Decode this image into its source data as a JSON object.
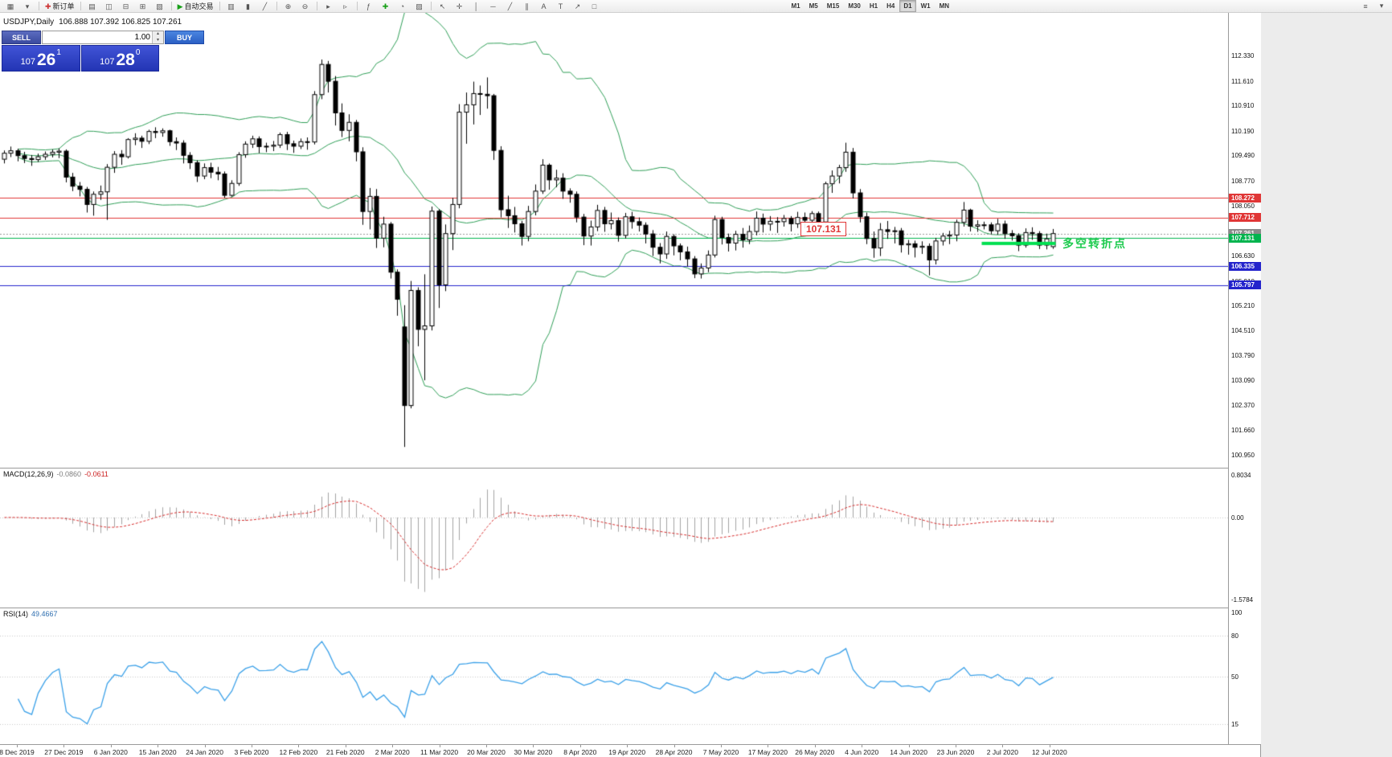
{
  "toolbar": {
    "groups": [
      [
        {
          "name": "new-chart-icon",
          "glyph": "▦"
        },
        {
          "name": "chart-profiles-icon",
          "glyph": "▾"
        }
      ],
      [
        {
          "name": "new-order-button",
          "glyph": "✚",
          "glyph_color": "#cc3333",
          "label": "新订单"
        }
      ],
      [
        {
          "name": "market-watch-icon",
          "glyph": "▤"
        },
        {
          "name": "data-window-icon",
          "glyph": "◫"
        },
        {
          "name": "navigator-icon",
          "glyph": "⊟"
        },
        {
          "name": "terminal-icon",
          "glyph": "⊞"
        },
        {
          "name": "strategy-tester-icon",
          "glyph": "▧"
        }
      ],
      [
        {
          "name": "autotrading-button",
          "glyph": "▶",
          "glyph_color": "#18a018",
          "label": "自动交易"
        }
      ],
      [
        {
          "name": "bar-chart-icon",
          "glyph": "▥"
        },
        {
          "name": "candlestick-chart-icon",
          "glyph": "▮"
        },
        {
          "name": "line-chart-icon",
          "glyph": "╱"
        }
      ],
      [
        {
          "name": "zoom-in-icon",
          "glyph": "⊕"
        },
        {
          "name": "zoom-out-icon",
          "glyph": "⊖"
        }
      ],
      [
        {
          "name": "auto-scroll-icon",
          "glyph": "▸"
        },
        {
          "name": "chart-shift-icon",
          "glyph": "▹"
        }
      ],
      [
        {
          "name": "indicators-list-icon",
          "glyph": "ƒ"
        },
        {
          "name": "add-indicator-icon",
          "glyph": "✚",
          "glyph_color": "#18a018"
        },
        {
          "name": "periods-menu-icon",
          "glyph": "◔"
        },
        {
          "name": "templates-icon",
          "glyph": "▨"
        }
      ],
      [
        {
          "name": "cursor-icon",
          "glyph": "↖"
        },
        {
          "name": "crosshair-icon",
          "glyph": "✛"
        },
        {
          "name": "vertical-line-icon",
          "glyph": "│"
        },
        {
          "name": "horizontal-line-icon",
          "glyph": "─"
        },
        {
          "name": "trendline-icon",
          "glyph": "╱"
        },
        {
          "name": "channel-icon",
          "glyph": "∥"
        },
        {
          "name": "text-icon",
          "glyph": "A"
        },
        {
          "name": "text-label-icon",
          "glyph": "T"
        },
        {
          "name": "arrow-tools-icon",
          "glyph": "↗"
        },
        {
          "name": "shapes-icon",
          "glyph": "□"
        }
      ]
    ],
    "timeframes": {
      "items": [
        "M1",
        "M5",
        "M15",
        "M30",
        "H1",
        "H4",
        "D1",
        "W1",
        "MN"
      ],
      "active": "D1"
    },
    "right_items": [
      {
        "name": "toolbar-menu-icon",
        "glyph": "≡"
      },
      {
        "name": "toolbar-collapse-icon",
        "glyph": "▾"
      }
    ]
  },
  "trade_panel": {
    "sell_label": "SELL",
    "buy_label": "BUY",
    "volume": "1.00",
    "bid": {
      "prefix": "107",
      "digits": "26",
      "pip": "1"
    },
    "ask": {
      "prefix": "107",
      "digits": "28",
      "pip": "0"
    }
  },
  "chart": {
    "title": "USDJPY,Daily",
    "ohlc_text": "106.888 107.392 106.825 107.261",
    "annotation_price": "107.131",
    "turning_point_label": "多空转折点",
    "price_axis_labels": [
      "112.330",
      "111.610",
      "110.910",
      "110.190",
      "109.490",
      "108.770",
      "108.050",
      "107.330",
      "106.630",
      "105.910",
      "105.210",
      "104.510",
      "103.790",
      "103.090",
      "102.370",
      "101.660",
      "100.950"
    ],
    "level_tags": [
      {
        "text": "108.272",
        "bg": "#e03636"
      },
      {
        "text": "107.712",
        "bg": "#e03636"
      },
      {
        "text": "107.261",
        "bg": "#8a8a8a"
      },
      {
        "text": "107.131",
        "bg": "#00b44e"
      },
      {
        "text": "106.335",
        "bg": "#2424cc"
      },
      {
        "text": "105.797",
        "bg": "#2424cc"
      }
    ],
    "date_axis_labels": [
      "8 Dec 2019",
      "27 Dec 2019",
      "6 Jan 2020",
      "15 Jan 2020",
      "24 Jan 2020",
      "3 Feb 2020",
      "12 Feb 2020",
      "21 Feb 2020",
      "2 Mar 2020",
      "11 Mar 2020",
      "20 Mar 2020",
      "30 Mar 2020",
      "8 Apr 2020",
      "19 Apr 2020",
      "28 Apr 2020",
      "7 May 2020",
      "17 May 2020",
      "26 May 2020",
      "4 Jun 2020",
      "14 Jun 2020",
      "23 Jun 2020",
      "2 Jul 2020",
      "12 Jul 2020"
    ]
  },
  "macd": {
    "name": "MACD(12,26,9)",
    "value_main": "-0.0860",
    "value_signal": "-0.0611",
    "axis_labels": [
      "0.8034",
      "0.00",
      "-1.5784"
    ],
    "scale_max": 0.8034,
    "scale_min": -1.5784
  },
  "rsi": {
    "name": "RSI(14)",
    "value": "49.4667",
    "axis_labels": [
      "100",
      "80",
      "50",
      "15"
    ],
    "scale_max": 100,
    "scale_min": 0
  },
  "chart_data": {
    "type": "candlestick",
    "symbol": "USDJPY",
    "timeframe": "Daily",
    "ylim": [
      100.59,
      113.55
    ],
    "bollinger": {
      "period": 20,
      "deviation": 2,
      "color": "#2f9e57"
    },
    "indicators": {
      "macd": {
        "fast": 12,
        "slow": 26,
        "signal": 9
      },
      "rsi": {
        "period": 14
      }
    },
    "levels": [
      {
        "price": 108.272,
        "color": "#e03636",
        "style": "solid"
      },
      {
        "price": 107.712,
        "color": "#e03636",
        "style": "solid"
      },
      {
        "price": 107.131,
        "color": "#00b44e",
        "style": "solid"
      },
      {
        "price": 106.335,
        "color": "#2424cc",
        "style": "solid"
      },
      {
        "price": 105.797,
        "color": "#2424cc",
        "style": "solid"
      },
      {
        "price": 107.261,
        "color": "#999999",
        "style": "dotted"
      }
    ],
    "highlight_segment": {
      "price": 106.98,
      "x_from_bar": 142,
      "x_to_bar": 152,
      "color": "#00e050"
    },
    "ohlc": [
      [
        109.38,
        109.63,
        109.26,
        109.55
      ],
      [
        109.55,
        109.74,
        109.44,
        109.62
      ],
      [
        109.62,
        109.68,
        109.32,
        109.48
      ],
      [
        109.48,
        109.59,
        109.27,
        109.4
      ],
      [
        109.4,
        109.5,
        109.19,
        109.37
      ],
      [
        109.37,
        109.54,
        109.3,
        109.45
      ],
      [
        109.45,
        109.6,
        109.36,
        109.52
      ],
      [
        109.52,
        109.66,
        109.43,
        109.58
      ],
      [
        109.58,
        109.69,
        109.41,
        109.61
      ],
      [
        109.61,
        109.66,
        108.72,
        108.87
      ],
      [
        108.87,
        108.99,
        108.47,
        108.61
      ],
      [
        108.61,
        108.73,
        108.32,
        108.52
      ],
      [
        108.52,
        108.59,
        107.86,
        108.09
      ],
      [
        108.09,
        108.46,
        107.77,
        108.38
      ],
      [
        108.38,
        108.63,
        108.22,
        108.45
      ],
      [
        108.45,
        109.24,
        107.65,
        109.15
      ],
      [
        109.15,
        109.61,
        108.99,
        109.52
      ],
      [
        109.52,
        109.64,
        109.22,
        109.45
      ],
      [
        109.45,
        109.98,
        109.4,
        109.94
      ],
      [
        109.94,
        110.12,
        109.78,
        109.98
      ],
      [
        109.98,
        110.05,
        109.7,
        109.89
      ],
      [
        109.89,
        110.22,
        109.81,
        110.17
      ],
      [
        110.17,
        110.29,
        109.98,
        110.14
      ],
      [
        110.14,
        110.26,
        110.02,
        110.19
      ],
      [
        110.19,
        110.22,
        109.76,
        109.88
      ],
      [
        109.88,
        110.0,
        109.64,
        109.84
      ],
      [
        109.84,
        109.92,
        109.26,
        109.49
      ],
      [
        109.49,
        109.58,
        109.1,
        109.28
      ],
      [
        109.28,
        109.35,
        108.73,
        108.9
      ],
      [
        108.9,
        109.26,
        108.81,
        109.14
      ],
      [
        109.14,
        109.28,
        108.84,
        109.01
      ],
      [
        109.01,
        109.16,
        108.78,
        108.96
      ],
      [
        108.96,
        109.03,
        108.28,
        108.35
      ],
      [
        108.35,
        108.78,
        108.31,
        108.69
      ],
      [
        108.69,
        109.58,
        108.62,
        109.51
      ],
      [
        109.51,
        109.89,
        109.42,
        109.81
      ],
      [
        109.81,
        110.05,
        109.7,
        109.96
      ],
      [
        109.96,
        110.03,
        109.55,
        109.74
      ],
      [
        109.74,
        109.85,
        109.58,
        109.75
      ],
      [
        109.75,
        109.9,
        109.61,
        109.78
      ],
      [
        109.78,
        110.14,
        109.7,
        110.08
      ],
      [
        110.08,
        110.16,
        109.64,
        109.82
      ],
      [
        109.82,
        109.91,
        109.56,
        109.75
      ],
      [
        109.75,
        109.97,
        109.67,
        109.88
      ],
      [
        109.88,
        110.0,
        109.65,
        109.87
      ],
      [
        109.87,
        111.32,
        109.8,
        111.22
      ],
      [
        111.22,
        112.22,
        111.09,
        112.08
      ],
      [
        112.08,
        112.18,
        111.28,
        111.6
      ],
      [
        111.6,
        111.75,
        110.34,
        110.7
      ],
      [
        110.7,
        110.97,
        110.01,
        110.2
      ],
      [
        110.2,
        110.66,
        109.89,
        110.43
      ],
      [
        110.43,
        110.5,
        109.32,
        109.59
      ],
      [
        109.59,
        109.72,
        107.51,
        107.89
      ],
      [
        107.89,
        108.56,
        107.38,
        108.32
      ],
      [
        108.32,
        108.53,
        106.85,
        107.13
      ],
      [
        107.13,
        107.74,
        106.87,
        107.53
      ],
      [
        107.53,
        107.59,
        105.98,
        106.16
      ],
      [
        106.16,
        106.24,
        104.92,
        105.39
      ],
      [
        104.6,
        105.22,
        101.18,
        102.36
      ],
      [
        102.36,
        105.91,
        102.28,
        105.64
      ],
      [
        105.64,
        105.73,
        104.05,
        104.53
      ],
      [
        104.53,
        106.1,
        103.08,
        104.63
      ],
      [
        104.63,
        108.03,
        104.5,
        107.9
      ],
      [
        107.9,
        107.96,
        105.14,
        105.8
      ],
      [
        105.8,
        107.52,
        105.62,
        107.26
      ],
      [
        107.26,
        108.28,
        106.79,
        108.09
      ],
      [
        108.09,
        110.95,
        107.98,
        110.72
      ],
      [
        110.72,
        111.28,
        109.82,
        110.93
      ],
      [
        110.93,
        111.59,
        110.37,
        111.25
      ],
      [
        111.25,
        111.48,
        110.64,
        111.23
      ],
      [
        111.23,
        111.71,
        110.82,
        111.19
      ],
      [
        111.19,
        111.24,
        109.36,
        109.63
      ],
      [
        109.63,
        109.75,
        107.72,
        107.94
      ],
      [
        107.94,
        108.34,
        107.42,
        107.77
      ],
      [
        107.77,
        108.02,
        107.29,
        107.54
      ],
      [
        107.54,
        107.62,
        106.92,
        107.18
      ],
      [
        107.18,
        108.05,
        107.04,
        107.89
      ],
      [
        107.89,
        108.66,
        107.78,
        108.47
      ],
      [
        108.47,
        109.38,
        108.39,
        109.21
      ],
      [
        109.21,
        109.26,
        108.51,
        108.79
      ],
      [
        108.79,
        109.08,
        108.58,
        108.84
      ],
      [
        108.84,
        108.98,
        108.25,
        108.47
      ],
      [
        108.47,
        108.55,
        108.14,
        108.38
      ],
      [
        108.38,
        108.46,
        107.58,
        107.73
      ],
      [
        107.73,
        107.82,
        106.93,
        107.19
      ],
      [
        107.19,
        107.63,
        106.92,
        107.45
      ],
      [
        107.45,
        108.08,
        107.33,
        107.92
      ],
      [
        107.92,
        108.02,
        107.31,
        107.54
      ],
      [
        107.54,
        107.86,
        107.38,
        107.63
      ],
      [
        107.63,
        107.72,
        107.03,
        107.21
      ],
      [
        107.21,
        107.85,
        107.12,
        107.74
      ],
      [
        107.74,
        107.88,
        107.4,
        107.6
      ],
      [
        107.6,
        107.72,
        107.32,
        107.5
      ],
      [
        107.5,
        107.58,
        106.98,
        107.25
      ],
      [
        107.25,
        107.36,
        106.62,
        106.87
      ],
      [
        106.87,
        106.99,
        106.41,
        106.68
      ],
      [
        106.68,
        107.32,
        106.54,
        107.18
      ],
      [
        107.18,
        107.24,
        106.64,
        106.91
      ],
      [
        106.91,
        106.98,
        106.5,
        106.74
      ],
      [
        106.74,
        106.89,
        106.32,
        106.54
      ],
      [
        106.54,
        106.62,
        105.99,
        106.11
      ],
      [
        106.11,
        106.41,
        105.98,
        106.28
      ],
      [
        106.28,
        106.78,
        106.16,
        106.65
      ],
      [
        106.65,
        107.77,
        106.58,
        107.66
      ],
      [
        107.66,
        107.74,
        106.95,
        107.15
      ],
      [
        107.15,
        107.26,
        106.75,
        106.99
      ],
      [
        106.99,
        107.34,
        106.78,
        107.24
      ],
      [
        107.24,
        107.42,
        106.86,
        107.08
      ],
      [
        107.08,
        107.49,
        106.96,
        107.32
      ],
      [
        107.32,
        107.89,
        107.21,
        107.7
      ],
      [
        107.7,
        107.83,
        107.29,
        107.53
      ],
      [
        107.53,
        107.76,
        107.34,
        107.61
      ],
      [
        107.61,
        107.73,
        107.28,
        107.6
      ],
      [
        107.6,
        107.79,
        107.46,
        107.69
      ],
      [
        107.69,
        107.76,
        107.32,
        107.54
      ],
      [
        107.54,
        107.88,
        107.42,
        107.72
      ],
      [
        107.72,
        107.86,
        107.41,
        107.64
      ],
      [
        107.64,
        107.9,
        107.5,
        107.83
      ],
      [
        107.83,
        107.89,
        107.37,
        107.59
      ],
      [
        107.59,
        108.74,
        107.52,
        108.68
      ],
      [
        108.68,
        109.06,
        108.42,
        108.9
      ],
      [
        108.9,
        109.22,
        108.69,
        109.14
      ],
      [
        109.14,
        109.85,
        109.02,
        109.58
      ],
      [
        109.58,
        109.7,
        108.26,
        108.42
      ],
      [
        108.42,
        108.53,
        107.58,
        107.74
      ],
      [
        107.74,
        107.86,
        106.96,
        107.12
      ],
      [
        107.12,
        107.32,
        106.57,
        106.85
      ],
      [
        106.85,
        107.56,
        106.62,
        107.37
      ],
      [
        107.37,
        107.62,
        107.11,
        107.32
      ],
      [
        107.32,
        107.45,
        106.98,
        107.34
      ],
      [
        107.34,
        107.42,
        106.72,
        106.94
      ],
      [
        106.94,
        107.08,
        106.66,
        106.97
      ],
      [
        106.97,
        107.06,
        106.58,
        106.87
      ],
      [
        106.87,
        107.04,
        106.68,
        106.9
      ],
      [
        106.9,
        106.98,
        106.07,
        106.51
      ],
      [
        106.51,
        107.14,
        106.38,
        107.05
      ],
      [
        107.05,
        107.28,
        106.92,
        107.19
      ],
      [
        107.19,
        107.34,
        106.96,
        107.22
      ],
      [
        107.22,
        107.66,
        107.04,
        107.58
      ],
      [
        107.58,
        108.16,
        107.46,
        107.93
      ],
      [
        107.93,
        107.97,
        107.32,
        107.47
      ],
      [
        107.47,
        107.64,
        107.31,
        107.51
      ],
      [
        107.51,
        107.6,
        107.38,
        107.51
      ],
      [
        107.51,
        107.58,
        107.24,
        107.34
      ],
      [
        107.34,
        107.68,
        107.23,
        107.53
      ],
      [
        107.53,
        107.63,
        107.11,
        107.26
      ],
      [
        107.26,
        107.36,
        107.06,
        107.2
      ],
      [
        107.2,
        107.27,
        106.76,
        106.93
      ],
      [
        106.93,
        107.41,
        106.86,
        107.29
      ],
      [
        107.29,
        107.44,
        107.08,
        107.26
      ],
      [
        107.26,
        107.33,
        106.82,
        106.93
      ],
      [
        106.93,
        107.26,
        106.81,
        107.11
      ],
      [
        106.888,
        107.392,
        106.825,
        107.261
      ]
    ]
  }
}
